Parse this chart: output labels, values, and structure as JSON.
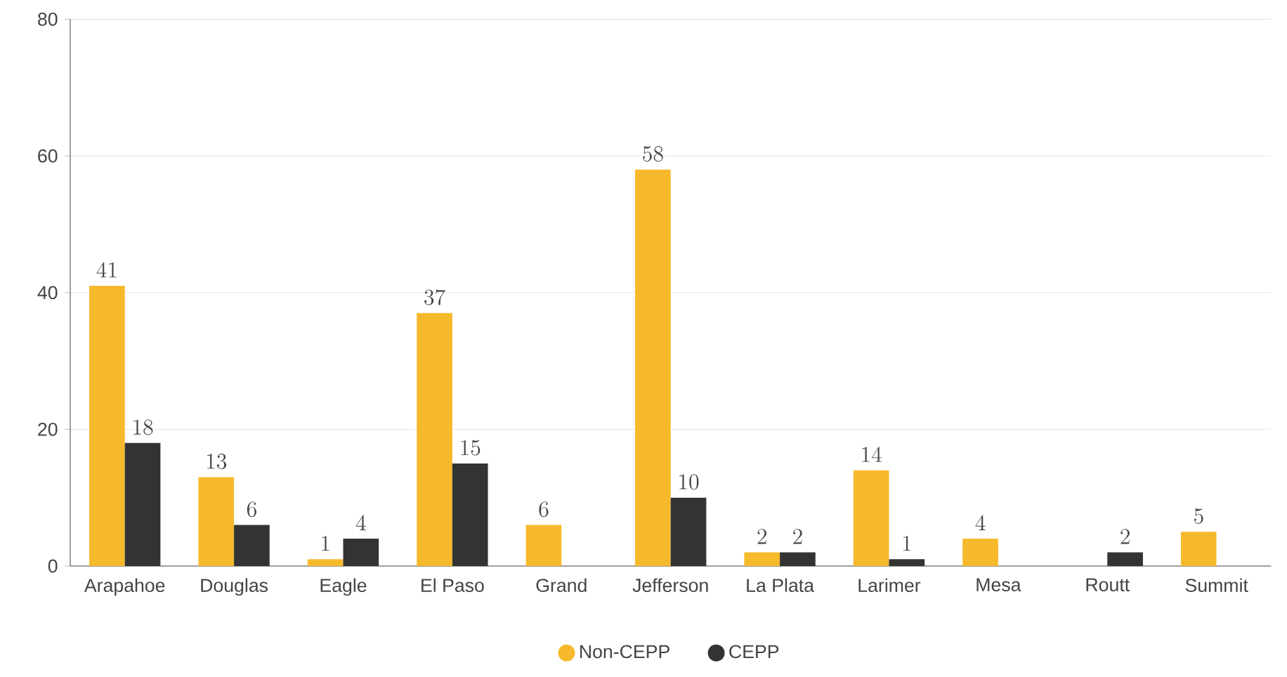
{
  "chart_data": {
    "type": "bar",
    "categories": [
      "Arapahoe",
      "Douglas",
      "Eagle",
      "El Paso",
      "Grand",
      "Jefferson",
      "La Plata",
      "Larimer",
      "Mesa",
      "Routt",
      "Summit"
    ],
    "series": [
      {
        "name": "Non-CEPP",
        "color": "#f6b92b",
        "values": [
          41,
          13,
          1,
          37,
          6,
          58,
          2,
          14,
          4,
          null,
          5
        ]
      },
      {
        "name": "CEPP",
        "color": "#333333",
        "values": [
          18,
          6,
          4,
          15,
          null,
          10,
          2,
          1,
          null,
          2,
          null
        ]
      }
    ],
    "ylim": [
      0,
      80
    ],
    "yticks": [
      0,
      20,
      40,
      60,
      80
    ],
    "grid": "y",
    "legend": "bottom",
    "data_labels": true
  }
}
